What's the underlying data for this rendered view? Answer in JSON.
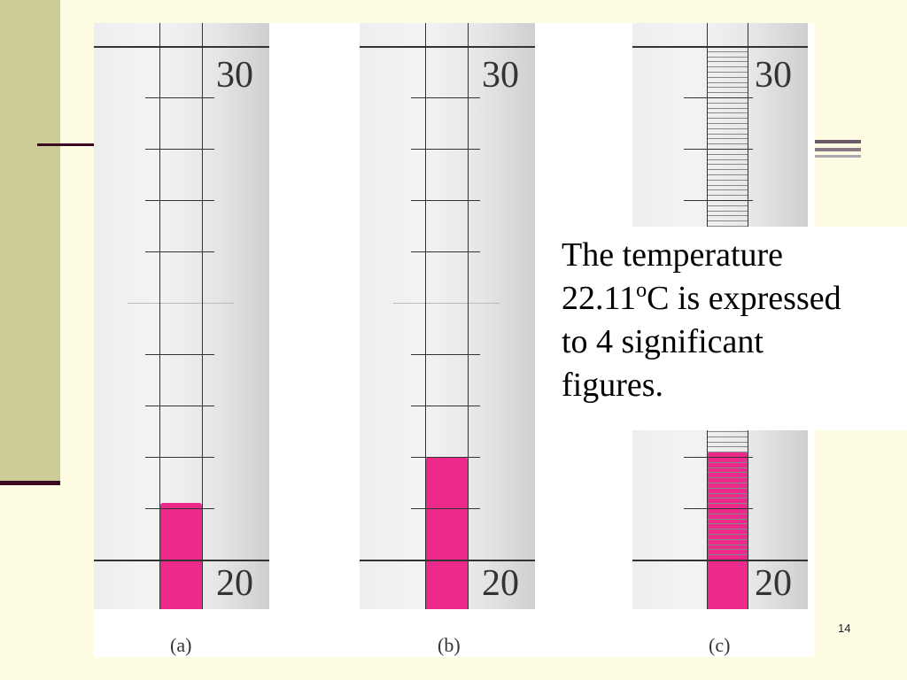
{
  "slide": {
    "page_number": "14",
    "note": {
      "line1": "The temperature",
      "value": "22.11",
      "unit_sup": "o",
      "unit_rest": "C is expressed",
      "line3": "to 4 significant",
      "line4": "figures."
    }
  },
  "thermometers": [
    {
      "caption": "(a)",
      "top_label": "30",
      "bottom_label": "20",
      "reading": 21.1
    },
    {
      "caption": "(b)",
      "top_label": "30",
      "bottom_label": "20",
      "reading": 22.0
    },
    {
      "caption": "(c)",
      "top_label": "30",
      "bottom_label": "20",
      "reading": 22.11
    }
  ],
  "colors": {
    "liquid": "#ec2a8c",
    "background": "#fefde4",
    "band": "#cccc99",
    "rule": "#3b0a22"
  }
}
